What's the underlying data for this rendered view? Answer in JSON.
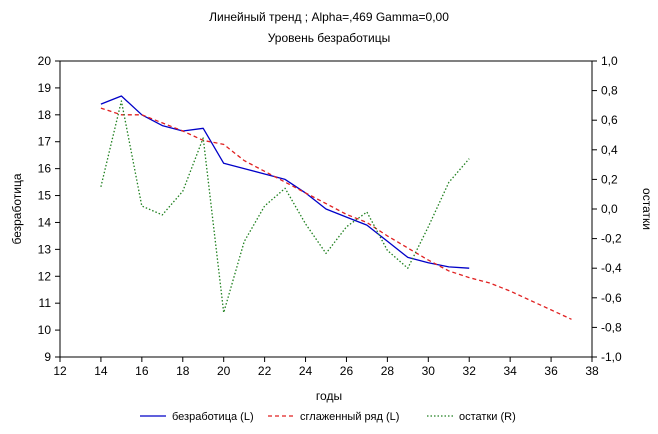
{
  "chart_data": {
    "type": "line",
    "title": "Линейный тренд ; Alpha=,469 Gamma=0,00",
    "subtitle": "Уровень безработицы",
    "xlabel": "годы",
    "ylabel_left": "безработица",
    "ylabel_right": "остатки",
    "xlim": [
      12,
      38
    ],
    "ylim_left": [
      9,
      20
    ],
    "ylim_right": [
      -1.0,
      1.0
    ],
    "x_ticks": [
      12,
      14,
      16,
      18,
      20,
      22,
      24,
      26,
      28,
      30,
      32,
      34,
      36,
      38
    ],
    "x_tick_labels": [
      "12",
      "14",
      "16",
      "18",
      "20",
      "22",
      "24",
      "26",
      "28",
      "30",
      "32",
      "34",
      "36",
      "38"
    ],
    "y_left_ticks": [
      9,
      10,
      11,
      12,
      13,
      14,
      15,
      16,
      17,
      18,
      19,
      20
    ],
    "y_left_tick_labels": [
      "9",
      "10",
      "11",
      "12",
      "13",
      "14",
      "15",
      "16",
      "17",
      "18",
      "19",
      "20"
    ],
    "y_right_ticks": [
      -1.0,
      -0.8,
      -0.6,
      -0.4,
      -0.2,
      0.0,
      0.2,
      0.4,
      0.6,
      0.8,
      1.0
    ],
    "y_right_tick_labels": [
      "-1,0",
      "-0,8",
      "-0,6",
      "-0,4",
      "-0,2",
      "0,0",
      "0,2",
      "0,4",
      "0,6",
      "0,8",
      "1,0"
    ],
    "grid": false,
    "legend_position": "bottom",
    "series": [
      {
        "name": "безработица (L)",
        "axis": "left",
        "color": "#0000c8",
        "style": "solid",
        "x": [
          14,
          15,
          16,
          17,
          18,
          19,
          20,
          21,
          22,
          23,
          24,
          25,
          26,
          27,
          28,
          29,
          30,
          31,
          32
        ],
        "values": [
          18.4,
          18.7,
          18.0,
          17.6,
          17.4,
          17.5,
          16.2,
          16.0,
          15.8,
          15.6,
          15.1,
          14.5,
          14.2,
          13.9,
          13.3,
          12.7,
          12.5,
          12.35,
          12.3
        ]
      },
      {
        "name": "сглаженный ряд (L)",
        "axis": "left",
        "color": "#e02020",
        "style": "dashed",
        "x": [
          14,
          15,
          16,
          17,
          18,
          19,
          20,
          21,
          22,
          23,
          24,
          25,
          26,
          27,
          28,
          29,
          30,
          31,
          32,
          33,
          34,
          35,
          36,
          37
        ],
        "values": [
          18.25,
          18.0,
          18.0,
          17.7,
          17.4,
          17.05,
          16.9,
          16.3,
          15.9,
          15.5,
          15.1,
          14.7,
          14.3,
          14.0,
          13.5,
          13.05,
          12.6,
          12.2,
          11.95,
          11.75,
          11.45,
          11.1,
          10.75,
          10.4
        ]
      },
      {
        "name": "остатки (R)",
        "axis": "right",
        "color": "#208020",
        "style": "dotted",
        "x": [
          14,
          15,
          16,
          17,
          18,
          19,
          20,
          21,
          22,
          23,
          24,
          25,
          26,
          27,
          28,
          29,
          30,
          31,
          32
        ],
        "values": [
          0.15,
          0.73,
          0.02,
          -0.04,
          0.12,
          0.48,
          -0.7,
          -0.22,
          0.02,
          0.14,
          -0.1,
          -0.3,
          -0.12,
          -0.02,
          -0.28,
          -0.4,
          -0.12,
          0.18,
          0.34
        ]
      }
    ]
  }
}
